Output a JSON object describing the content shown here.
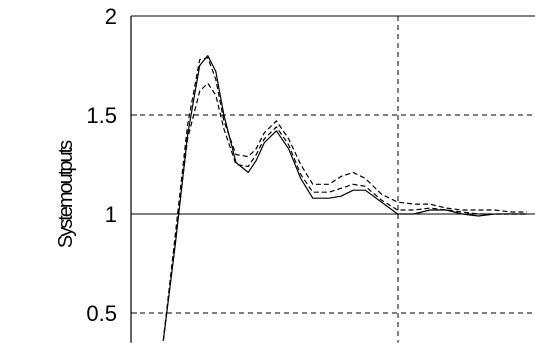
{
  "chart_data": {
    "type": "line",
    "title": "",
    "xlabel": "",
    "ylabel": "Systemoutputs",
    "ylim": [
      0.35,
      2.0
    ],
    "xlim": [
      0,
      10
    ],
    "yticks": [
      2,
      1.5,
      1,
      0.5
    ],
    "ytick_labels": [
      "2",
      "1.5",
      "1",
      "0.5"
    ],
    "grid": "dashed",
    "series": [
      {
        "style": "solid",
        "color": "#000000",
        "x": [
          0.8,
          1.1,
          1.4,
          1.7,
          1.9,
          2.1,
          2.3,
          2.6,
          2.9,
          3.1,
          3.3,
          3.6,
          3.9,
          4.2,
          4.5,
          4.9,
          5.2,
          5.5,
          5.8,
          6.2,
          6.6,
          7.0,
          7.4,
          7.8,
          8.2,
          8.6,
          9.0,
          9.4,
          9.8
        ],
        "y": [
          0.36,
          0.85,
          1.4,
          1.75,
          1.8,
          1.72,
          1.5,
          1.26,
          1.21,
          1.27,
          1.36,
          1.42,
          1.33,
          1.18,
          1.08,
          1.08,
          1.09,
          1.12,
          1.12,
          1.06,
          1.0,
          1.0,
          1.02,
          1.02,
          1.0,
          0.99,
          1.0,
          1.0,
          1.0
        ]
      },
      {
        "style": "dashed",
        "color": "#000000",
        "x": [
          0.8,
          1.1,
          1.4,
          1.7,
          1.9,
          2.1,
          2.3,
          2.6,
          2.9,
          3.1,
          3.3,
          3.6,
          3.9,
          4.2,
          4.5,
          4.9,
          5.2,
          5.5,
          5.8,
          6.2,
          6.6,
          7.0,
          7.4,
          7.8,
          8.2,
          8.6,
          9.0,
          9.4,
          9.8
        ],
        "y": [
          0.36,
          0.9,
          1.45,
          1.78,
          1.79,
          1.68,
          1.47,
          1.3,
          1.29,
          1.33,
          1.41,
          1.47,
          1.38,
          1.25,
          1.15,
          1.15,
          1.19,
          1.21,
          1.18,
          1.1,
          1.06,
          1.05,
          1.05,
          1.03,
          1.02,
          1.02,
          1.02,
          1.01,
          1.01
        ]
      },
      {
        "style": "dashed",
        "color": "#000000",
        "x": [
          0.8,
          1.1,
          1.4,
          1.7,
          1.9,
          2.1,
          2.3,
          2.6,
          2.9,
          3.1,
          3.3,
          3.6,
          3.9,
          4.2,
          4.5,
          4.9,
          5.2,
          5.5,
          5.8,
          6.2,
          6.6,
          7.0,
          7.4,
          7.8,
          8.2,
          8.6,
          9.0,
          9.4,
          9.8
        ],
        "y": [
          0.36,
          0.88,
          1.38,
          1.62,
          1.66,
          1.6,
          1.43,
          1.25,
          1.24,
          1.3,
          1.38,
          1.44,
          1.35,
          1.2,
          1.11,
          1.11,
          1.13,
          1.15,
          1.14,
          1.07,
          1.02,
          1.02,
          1.03,
          1.02,
          1.01,
          1.0,
          1.0,
          1.0,
          1.0
        ]
      }
    ]
  }
}
